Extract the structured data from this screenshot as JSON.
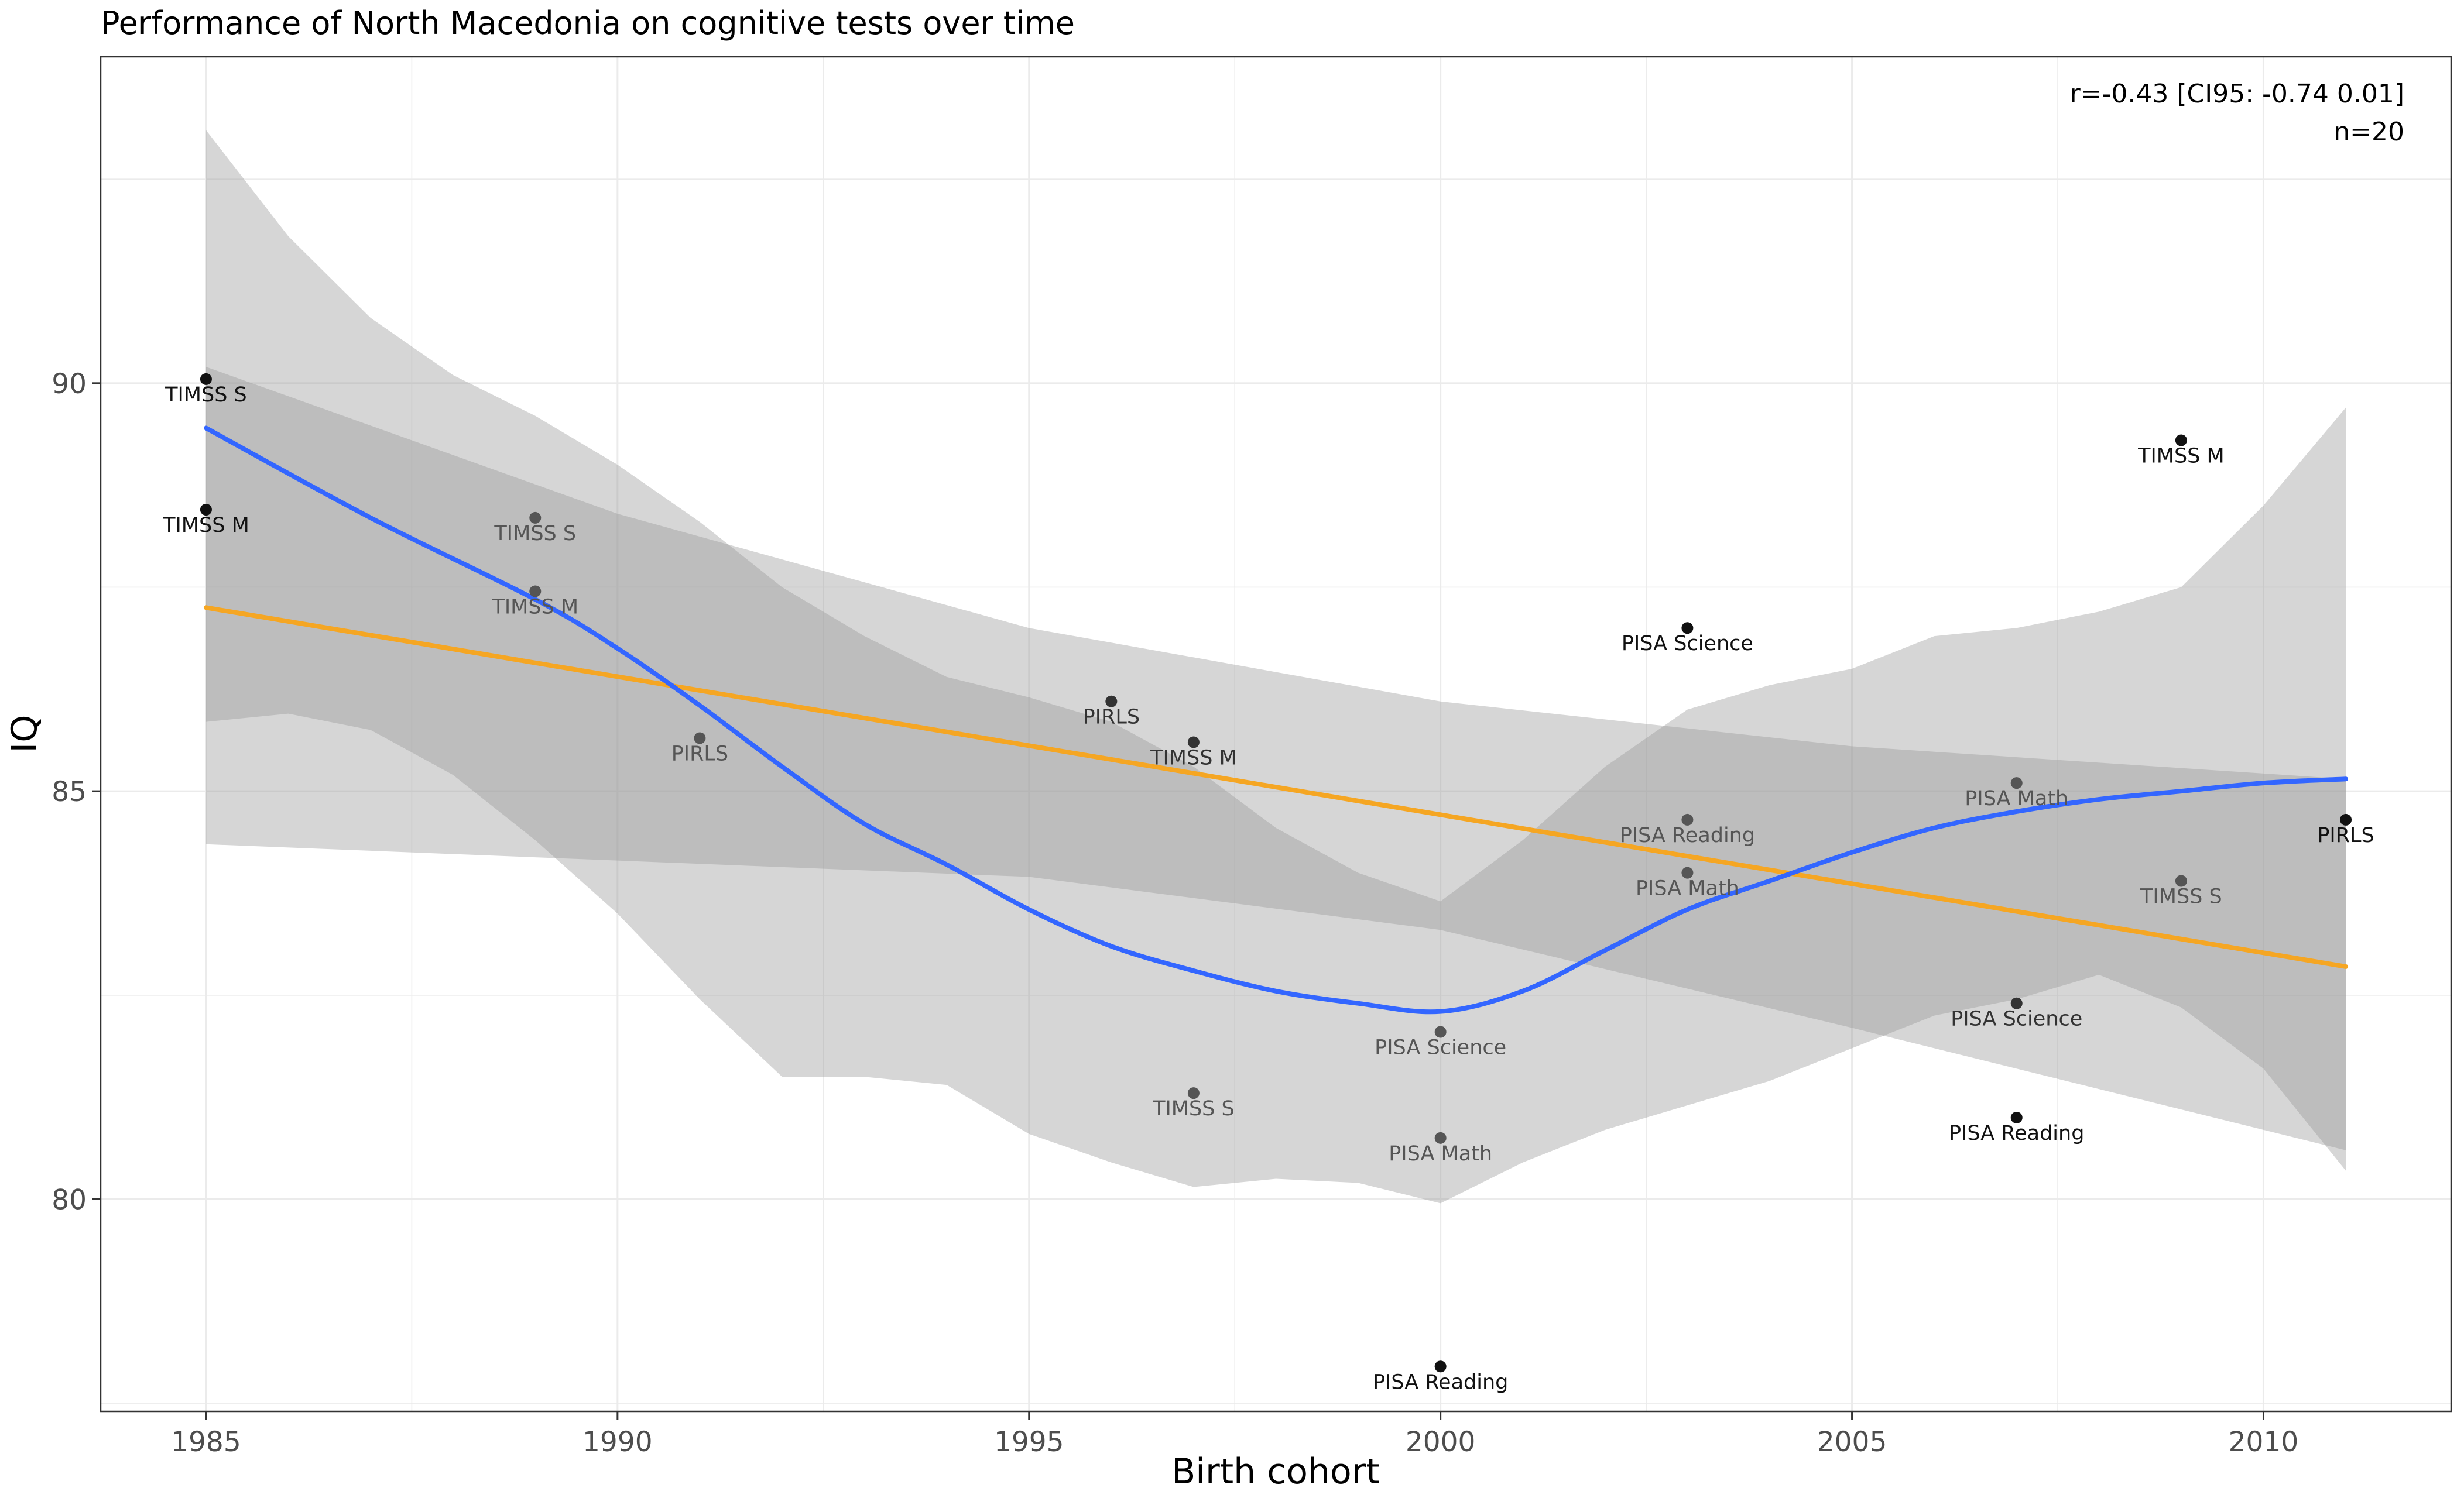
{
  "chart_data": {
    "type": "scatter",
    "title": "Performance of North Macedonia on cognitive tests over time",
    "xlabel": "Birth cohort",
    "ylabel": "IQ",
    "xlim": [
      1983.72,
      2012.28
    ],
    "ylim": [
      77.4,
      94.0
    ],
    "x_ticks": [
      1985,
      1990,
      1995,
      2000,
      2005,
      2010
    ],
    "y_ticks": [
      80,
      85,
      90
    ],
    "grid": true,
    "annotation_lines": [
      "r=-0.43 [CI95: -0.74 0.01]",
      "n=20"
    ],
    "annotation_position": "top-right",
    "points": [
      {
        "x": 1985,
        "y": 90.05,
        "label": "TIMSS S",
        "color": "#111111"
      },
      {
        "x": 1985,
        "y": 88.45,
        "label": "TIMSS M",
        "color": "#111111"
      },
      {
        "x": 1989,
        "y": 88.35,
        "label": "TIMSS S",
        "color": "#555555"
      },
      {
        "x": 1989,
        "y": 87.45,
        "label": "TIMSS M",
        "color": "#555555"
      },
      {
        "x": 1991,
        "y": 85.65,
        "label": "PIRLS",
        "color": "#555555"
      },
      {
        "x": 1996,
        "y": 86.1,
        "label": "PIRLS",
        "color": "#333333"
      },
      {
        "x": 1997,
        "y": 85.6,
        "label": "TIMSS M",
        "color": "#333333"
      },
      {
        "x": 1997,
        "y": 81.3,
        "label": "TIMSS S",
        "color": "#555555"
      },
      {
        "x": 2000,
        "y": 82.05,
        "label": "PISA Science",
        "color": "#555555"
      },
      {
        "x": 2000,
        "y": 80.75,
        "label": "PISA Math",
        "color": "#555555"
      },
      {
        "x": 2000,
        "y": 77.95,
        "label": "PISA Reading",
        "color": "#111111"
      },
      {
        "x": 2003,
        "y": 87.0,
        "label": "PISA Science",
        "color": "#111111"
      },
      {
        "x": 2003,
        "y": 84.65,
        "label": "PISA Reading",
        "color": "#555555"
      },
      {
        "x": 2003,
        "y": 84.0,
        "label": "PISA Math",
        "color": "#555555"
      },
      {
        "x": 2007,
        "y": 85.1,
        "label": "PISA Math",
        "color": "#555555"
      },
      {
        "x": 2007,
        "y": 82.4,
        "label": "PISA Science",
        "color": "#333333"
      },
      {
        "x": 2007,
        "y": 81.0,
        "label": "PISA Reading",
        "color": "#111111"
      },
      {
        "x": 2009,
        "y": 89.3,
        "label": "TIMSS M",
        "color": "#111111"
      },
      {
        "x": 2009,
        "y": 83.9,
        "label": "TIMSS S",
        "color": "#555555"
      },
      {
        "x": 2011,
        "y": 84.65,
        "label": "PIRLS",
        "color": "#111111"
      }
    ],
    "linear_fit": {
      "color": "#f5a623",
      "line": [
        [
          1985,
          87.25
        ],
        [
          2011,
          82.85
        ]
      ],
      "band_upper": [
        [
          1985,
          90.2
        ],
        [
          1990,
          88.4
        ],
        [
          1995,
          87.0
        ],
        [
          2000,
          86.1
        ],
        [
          2005,
          85.55
        ],
        [
          2011,
          85.15
        ]
      ],
      "band_lower": [
        [
          1985,
          84.35
        ],
        [
          1990,
          84.15
        ],
        [
          1995,
          83.95
        ],
        [
          2000,
          83.3
        ],
        [
          2005,
          82.1
        ],
        [
          2011,
          80.6
        ]
      ]
    },
    "loess_fit": {
      "color": "#3366ff",
      "line": [
        [
          1985,
          89.45
        ],
        [
          1987,
          88.35
        ],
        [
          1989,
          87.35
        ],
        [
          1990,
          86.75
        ],
        [
          1991,
          86.05
        ],
        [
          1992,
          85.3
        ],
        [
          1993,
          84.6
        ],
        [
          1994,
          84.1
        ],
        [
          1995,
          83.55
        ],
        [
          1996,
          83.1
        ],
        [
          1997,
          82.8
        ],
        [
          1998,
          82.55
        ],
        [
          1999,
          82.4
        ],
        [
          2000,
          82.3
        ],
        [
          2001,
          82.55
        ],
        [
          2002,
          83.05
        ],
        [
          2003,
          83.55
        ],
        [
          2004,
          83.9
        ],
        [
          2005,
          84.25
        ],
        [
          2006,
          84.55
        ],
        [
          2007,
          84.75
        ],
        [
          2008,
          84.9
        ],
        [
          2009,
          85.0
        ],
        [
          2010,
          85.1
        ],
        [
          2011,
          85.15
        ]
      ],
      "band_upper": [
        [
          1985,
          93.1
        ],
        [
          1986,
          91.8
        ],
        [
          1987,
          90.8
        ],
        [
          1988,
          90.1
        ],
        [
          1989,
          89.6
        ],
        [
          1990,
          89.0
        ],
        [
          1991,
          88.3
        ],
        [
          1992,
          87.5
        ],
        [
          1993,
          86.9
        ],
        [
          1994,
          86.4
        ],
        [
          1995,
          86.15
        ],
        [
          1996,
          85.85
        ],
        [
          1997,
          85.3
        ],
        [
          1998,
          84.55
        ],
        [
          1999,
          84.0
        ],
        [
          2000,
          83.65
        ],
        [
          2001,
          84.4
        ],
        [
          2002,
          85.3
        ],
        [
          2003,
          86.0
        ],
        [
          2004,
          86.3
        ],
        [
          2005,
          86.5
        ],
        [
          2006,
          86.9
        ],
        [
          2007,
          87.0
        ],
        [
          2008,
          87.2
        ],
        [
          2009,
          87.5
        ],
        [
          2010,
          88.5
        ],
        [
          2011,
          89.7
        ]
      ],
      "band_lower": [
        [
          1985,
          85.85
        ],
        [
          1986,
          85.95
        ],
        [
          1987,
          85.75
        ],
        [
          1988,
          85.2
        ],
        [
          1989,
          84.4
        ],
        [
          1990,
          83.5
        ],
        [
          1991,
          82.45
        ],
        [
          1992,
          81.5
        ],
        [
          1993,
          81.5
        ],
        [
          1994,
          81.4
        ],
        [
          1995,
          80.8
        ],
        [
          1996,
          80.45
        ],
        [
          1997,
          80.15
        ],
        [
          1998,
          80.25
        ],
        [
          1999,
          80.2
        ],
        [
          2000,
          79.95
        ],
        [
          2001,
          80.45
        ],
        [
          2002,
          80.85
        ],
        [
          2003,
          81.15
        ],
        [
          2004,
          81.45
        ],
        [
          2005,
          81.85
        ],
        [
          2006,
          82.25
        ],
        [
          2007,
          82.45
        ],
        [
          2008,
          82.75
        ],
        [
          2009,
          82.35
        ],
        [
          2010,
          81.6
        ],
        [
          2011,
          80.35
        ]
      ]
    }
  }
}
